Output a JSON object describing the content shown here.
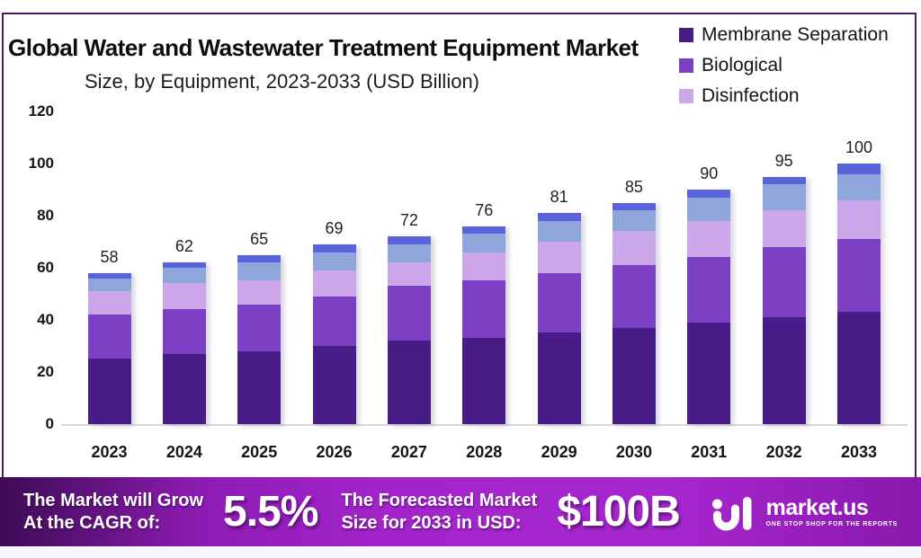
{
  "header": {
    "title": "Global Water and Wastewater Treatment Equipment Market",
    "subtitle": "Size, by Equipment, 2023-2033 (USD Billion)"
  },
  "legend": [
    {
      "label": "Membrane Separation",
      "color": "#471c87"
    },
    {
      "label": "Biological",
      "color": "#7d3fc4"
    },
    {
      "label": "Disinfection",
      "color": "#cba6e9"
    }
  ],
  "chart_data": {
    "type": "bar",
    "stacked": true,
    "title": "Global Water and Wastewater Treatment Equipment Market Size, by Equipment, 2023-2033 (USD Billion)",
    "unit": "USD Billion",
    "categories": [
      "2023",
      "2024",
      "2025",
      "2026",
      "2027",
      "2028",
      "2029",
      "2030",
      "2031",
      "2032",
      "2033"
    ],
    "bar_total_labels": [
      58,
      62,
      65,
      69,
      72,
      76,
      81,
      85,
      90,
      95,
      100
    ],
    "series": [
      {
        "name": "Membrane Separation",
        "color": "#471c87",
        "values": [
          25,
          27,
          28,
          30,
          32,
          33,
          35,
          37,
          39,
          41,
          43
        ]
      },
      {
        "name": "Biological",
        "color": "#7d3fc4",
        "values": [
          17,
          17,
          18,
          19,
          21,
          22,
          23,
          24,
          25,
          27,
          28
        ]
      },
      {
        "name": "Disinfection",
        "color": "#cba6e9",
        "values": [
          9,
          10,
          9,
          10,
          9,
          11,
          12,
          13,
          14,
          14,
          15
        ]
      },
      {
        "name": "Unlabeled segment (light steel blue)",
        "color": "#8fa6dc",
        "values": [
          5,
          6,
          7,
          7,
          7,
          7,
          8,
          8,
          9,
          10,
          10
        ]
      },
      {
        "name": "Unlabeled segment (periwinkle blue)",
        "color": "#5a64d8",
        "values": [
          2,
          2,
          3,
          3,
          3,
          3,
          3,
          3,
          3,
          3,
          4
        ]
      }
    ],
    "yticks": [
      0,
      20,
      40,
      60,
      80,
      100,
      120
    ],
    "ylim": [
      0,
      120
    ],
    "grid": false,
    "legend_position": "top-right",
    "legend_entries_visible": [
      "Membrane Separation",
      "Biological",
      "Disinfection"
    ]
  },
  "banner": {
    "cagr_label_line1": "The Market will Grow",
    "cagr_label_line2": "At the CAGR of:",
    "cagr_value": "5.5%",
    "forecast_label_line1": "The Forecasted Market",
    "forecast_label_line2": "Size for 2033 in USD:",
    "forecast_value": "$100B",
    "brand_name": "market.us",
    "brand_tagline": "ONE STOP SHOP FOR THE REPORTS"
  },
  "colors": {
    "panel_border": "#44215e",
    "axis_line": "#d9d7de",
    "banner_gradient_left": "#3d0b54",
    "banner_gradient_mid": "#a324cb",
    "banner_gradient_right": "#8a18ad",
    "text_dark": "#141414"
  }
}
